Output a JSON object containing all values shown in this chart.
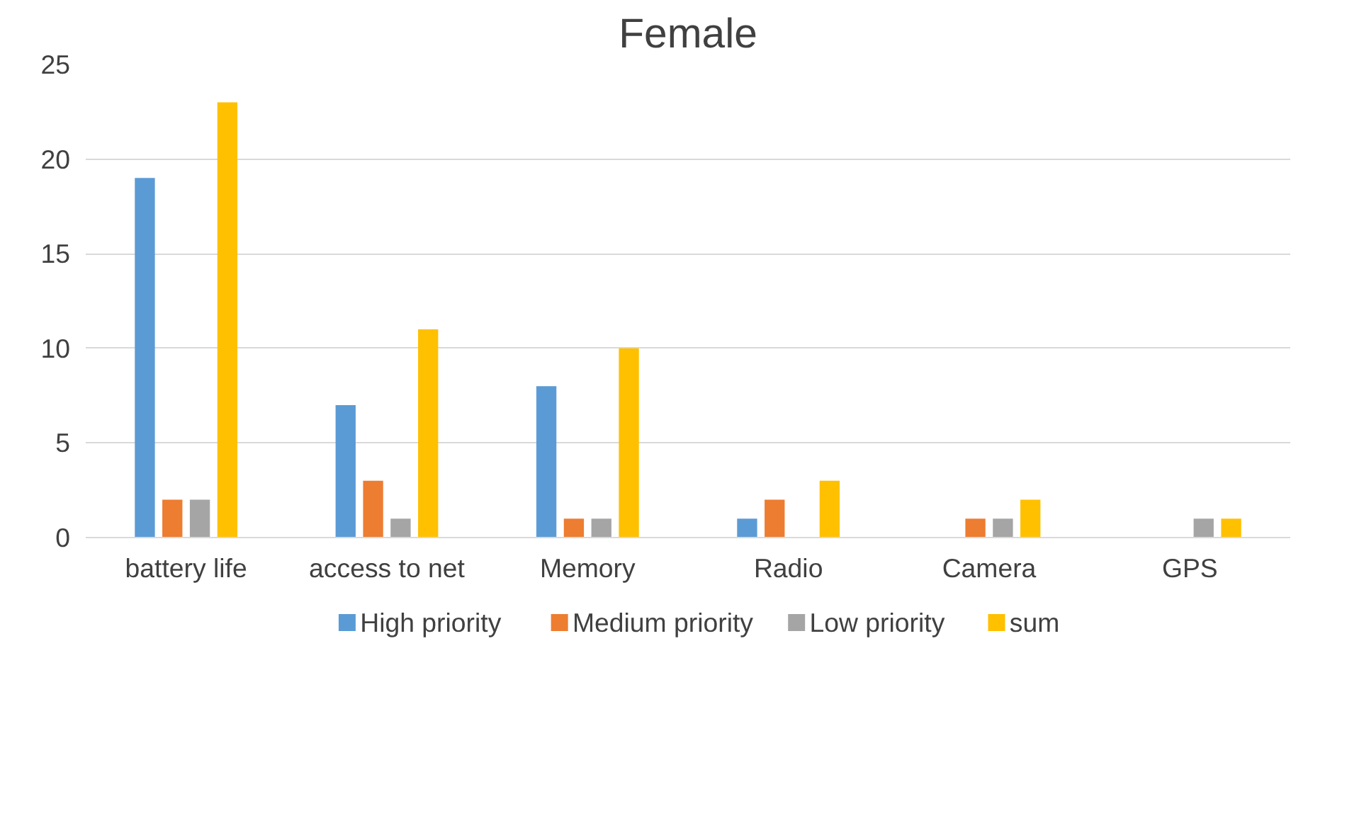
{
  "chart_data": {
    "type": "bar",
    "title": "Female",
    "categories": [
      "battery life",
      "access to net",
      "Memory",
      "Radio",
      "Camera",
      "GPS"
    ],
    "series": [
      {
        "name": "High priority",
        "color": "#5b9bd5",
        "values": [
          19,
          7,
          8,
          1,
          0,
          0
        ]
      },
      {
        "name": "Medium priority",
        "color": "#ed7d31",
        "values": [
          2,
          3,
          1,
          2,
          1,
          0
        ]
      },
      {
        "name": "Low priority",
        "color": "#a5a5a5",
        "values": [
          2,
          1,
          1,
          0,
          1,
          1
        ]
      },
      {
        "name": "sum",
        "color": "#ffc000",
        "values": [
          23,
          11,
          10,
          3,
          2,
          1
        ]
      }
    ],
    "ylim": [
      0,
      25
    ],
    "yticks": [
      0,
      5,
      10,
      15,
      20,
      25
    ],
    "grid": "y",
    "legend": "bottom"
  }
}
